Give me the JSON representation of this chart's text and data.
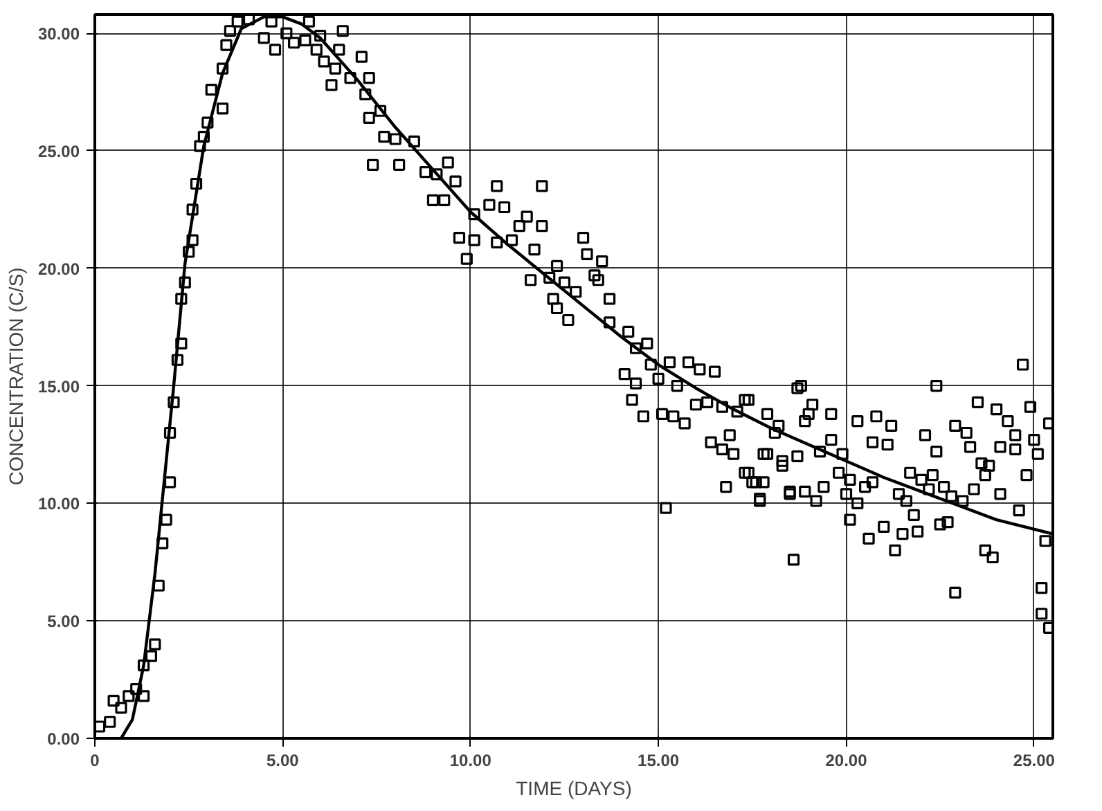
{
  "chart_data": {
    "type": "scatter",
    "xlabel": "TIME (DAYS)",
    "ylabel": "CONCENTRATION (C/S)",
    "xlim": [
      0,
      25.5
    ],
    "ylim": [
      0,
      30.8
    ],
    "xticks": [
      {
        "value": 0,
        "label": "0"
      },
      {
        "value": 5,
        "label": "5.00"
      },
      {
        "value": 10,
        "label": "10.00"
      },
      {
        "value": 15,
        "label": "15.00"
      },
      {
        "value": 20,
        "label": "20.00"
      },
      {
        "value": 25,
        "label": "25.00"
      }
    ],
    "yticks": [
      {
        "value": 0,
        "label": "0.00"
      },
      {
        "value": 5,
        "label": "5.00"
      },
      {
        "value": 10,
        "label": "10.00"
      },
      {
        "value": 15,
        "label": "15.00"
      },
      {
        "value": 20,
        "label": "20.00"
      },
      {
        "value": 25,
        "label": "25.00"
      },
      {
        "value": 30,
        "label": "30.00"
      }
    ],
    "grid": true,
    "series": [
      {
        "color": "#000000",
        "marker": "square",
        "x": [
          0.12,
          0.4,
          0.5,
          0.7,
          0.9,
          1.1,
          1.3,
          1.3,
          1.5,
          1.6,
          1.7,
          1.8,
          1.9,
          2.0,
          2.0,
          2.1,
          2.2,
          2.3,
          2.3,
          2.4,
          2.5,
          2.6,
          2.6,
          2.7,
          2.8,
          2.9,
          3.0,
          3.4,
          3.1,
          3.4,
          3.5,
          3.6,
          3.8,
          4.1,
          4.5,
          4.8,
          4.7,
          5.1,
          5.3,
          5.7,
          5.6,
          5.9,
          6.0,
          6.1,
          6.3,
          6.4,
          6.6,
          6.5,
          6.8,
          7.1,
          7.2,
          7.3,
          7.3,
          7.6,
          7.7,
          8.0,
          7.4,
          8.1,
          8.5,
          8.8,
          9.0,
          9.4,
          9.1,
          9.3,
          9.6,
          10.7,
          11.9,
          10.1,
          10.5,
          10.9,
          11.5,
          9.7,
          10.1,
          9.9,
          10.7,
          11.3,
          11.9,
          11.1,
          11.7,
          11.6,
          12.1,
          12.3,
          12.5,
          12.8,
          12.2,
          12.3,
          12.6,
          13.0,
          13.1,
          13.3,
          13.4,
          13.5,
          13.7,
          13.7,
          14.2,
          14.4,
          14.7,
          14.1,
          14.4,
          14.3,
          14.6,
          14.8,
          15.0,
          15.3,
          15.5,
          15.1,
          15.4,
          15.7,
          15.2,
          15.8,
          16.1,
          16.5,
          16.0,
          16.3,
          16.7,
          16.4,
          16.7,
          17.0,
          16.9,
          17.3,
          17.1,
          16.8,
          17.3,
          17.6,
          17.7,
          17.9,
          18.1,
          17.9,
          18.3,
          18.7,
          18.5,
          18.6,
          18.8,
          22.4,
          24.7,
          17.4,
          19.1,
          19.0,
          19.6,
          18.9,
          18.2,
          20.3,
          20.8,
          21.2,
          20.7,
          21.1,
          19.6,
          19.3,
          17.8,
          18.3,
          18.7,
          19.9,
          19.8,
          17.4,
          17.5,
          17.8,
          17.7,
          18.5,
          18.9,
          19.2,
          19.4,
          20.1,
          20.0,
          20.3,
          20.1,
          20.5,
          20.7,
          20.6,
          21.0,
          21.5,
          21.9,
          21.3,
          21.4,
          21.6,
          21.8,
          21.7,
          22.0,
          22.3,
          22.1,
          22.4,
          22.2,
          22.6,
          22.8,
          23.1,
          23.4,
          22.5,
          22.7,
          22.9,
          22.9,
          23.2,
          23.5,
          23.3,
          23.6,
          23.7,
          23.8,
          23.7,
          23.9,
          24.0,
          24.3,
          24.5,
          24.1,
          24.1,
          24.5,
          24.9,
          24.8,
          25.0,
          25.1,
          24.6,
          25.4,
          25.3,
          25.2,
          25.2,
          25.4
        ],
        "values": [
          0.5,
          0.7,
          1.6,
          1.3,
          1.8,
          2.1,
          1.8,
          3.1,
          3.5,
          4.0,
          6.5,
          8.3,
          9.3,
          10.9,
          13.0,
          14.3,
          16.1,
          16.8,
          18.7,
          19.4,
          20.7,
          21.2,
          22.5,
          23.6,
          25.2,
          25.6,
          26.2,
          26.8,
          27.6,
          28.5,
          29.5,
          30.1,
          30.5,
          30.6,
          29.8,
          29.3,
          30.5,
          30.0,
          29.6,
          30.5,
          29.7,
          29.3,
          29.9,
          28.8,
          27.8,
          28.5,
          30.1,
          29.3,
          28.1,
          29.0,
          27.4,
          28.1,
          26.4,
          26.7,
          25.6,
          25.5,
          24.4,
          24.4,
          25.4,
          24.1,
          22.9,
          24.5,
          24.0,
          22.9,
          23.7,
          23.5,
          23.5,
          22.3,
          22.7,
          22.6,
          22.2,
          21.3,
          21.2,
          20.4,
          21.1,
          21.8,
          21.8,
          21.2,
          20.8,
          19.5,
          19.6,
          20.1,
          19.4,
          19.0,
          18.7,
          18.3,
          17.8,
          21.3,
          20.6,
          19.7,
          19.5,
          20.3,
          18.7,
          17.7,
          17.3,
          16.6,
          16.8,
          15.5,
          15.1,
          14.4,
          13.7,
          15.9,
          15.3,
          16.0,
          15.0,
          13.8,
          13.7,
          13.4,
          9.8,
          16.0,
          15.7,
          15.6,
          14.2,
          14.3,
          14.1,
          12.6,
          12.3,
          12.1,
          12.9,
          14.4,
          13.9,
          10.7,
          11.3,
          10.9,
          10.2,
          13.8,
          13.0,
          12.1,
          11.6,
          14.9,
          10.4,
          7.6,
          15.0,
          15.0,
          15.9,
          14.4,
          14.2,
          13.8,
          13.8,
          13.5,
          13.3,
          13.5,
          13.7,
          13.3,
          12.6,
          12.5,
          12.7,
          12.2,
          12.1,
          11.8,
          12.0,
          12.1,
          11.3,
          11.3,
          10.9,
          10.9,
          10.1,
          10.5,
          10.5,
          10.1,
          10.7,
          11.0,
          10.4,
          10.0,
          9.3,
          10.7,
          10.9,
          8.5,
          9.0,
          8.7,
          8.8,
          8.0,
          10.4,
          10.1,
          9.5,
          11.3,
          11.0,
          11.2,
          12.9,
          12.2,
          10.6,
          10.7,
          10.3,
          10.1,
          10.6,
          9.1,
          9.2,
          6.2,
          13.3,
          13.0,
          14.3,
          12.4,
          11.7,
          11.2,
          11.6,
          8.0,
          7.7,
          14.0,
          13.5,
          12.9,
          10.4,
          12.4,
          12.3,
          14.1,
          11.2,
          12.7,
          12.1,
          9.7,
          13.4,
          8.4,
          6.4,
          5.3,
          4.7
        ]
      },
      {
        "type": "line",
        "color": "#000000",
        "line_style": "solid",
        "marker": "none",
        "x": [
          0.7,
          1.0,
          1.3,
          1.6,
          1.8,
          2.1,
          2.4,
          2.9,
          3.4,
          3.9,
          4.5,
          5.0,
          5.5,
          6.0,
          7.0,
          8.0,
          9.0,
          10.0,
          11.0,
          12.0,
          13.0,
          14.0,
          15.0,
          16.0,
          17.0,
          18.0,
          19.0,
          20.0,
          21.0,
          22.0,
          23.0,
          24.0,
          25.5
        ],
        "values": [
          0,
          0.8,
          3.1,
          7,
          10.2,
          15,
          20.2,
          25.2,
          28.3,
          30.2,
          30.7,
          30.7,
          30.4,
          29.8,
          28,
          26,
          24.2,
          22.4,
          21.0,
          19.7,
          18.4,
          17.1,
          15.9,
          14.9,
          14.0,
          13.2,
          12.5,
          11.8,
          11.1,
          10.5,
          9.9,
          9.3,
          8.7
        ]
      }
    ]
  }
}
